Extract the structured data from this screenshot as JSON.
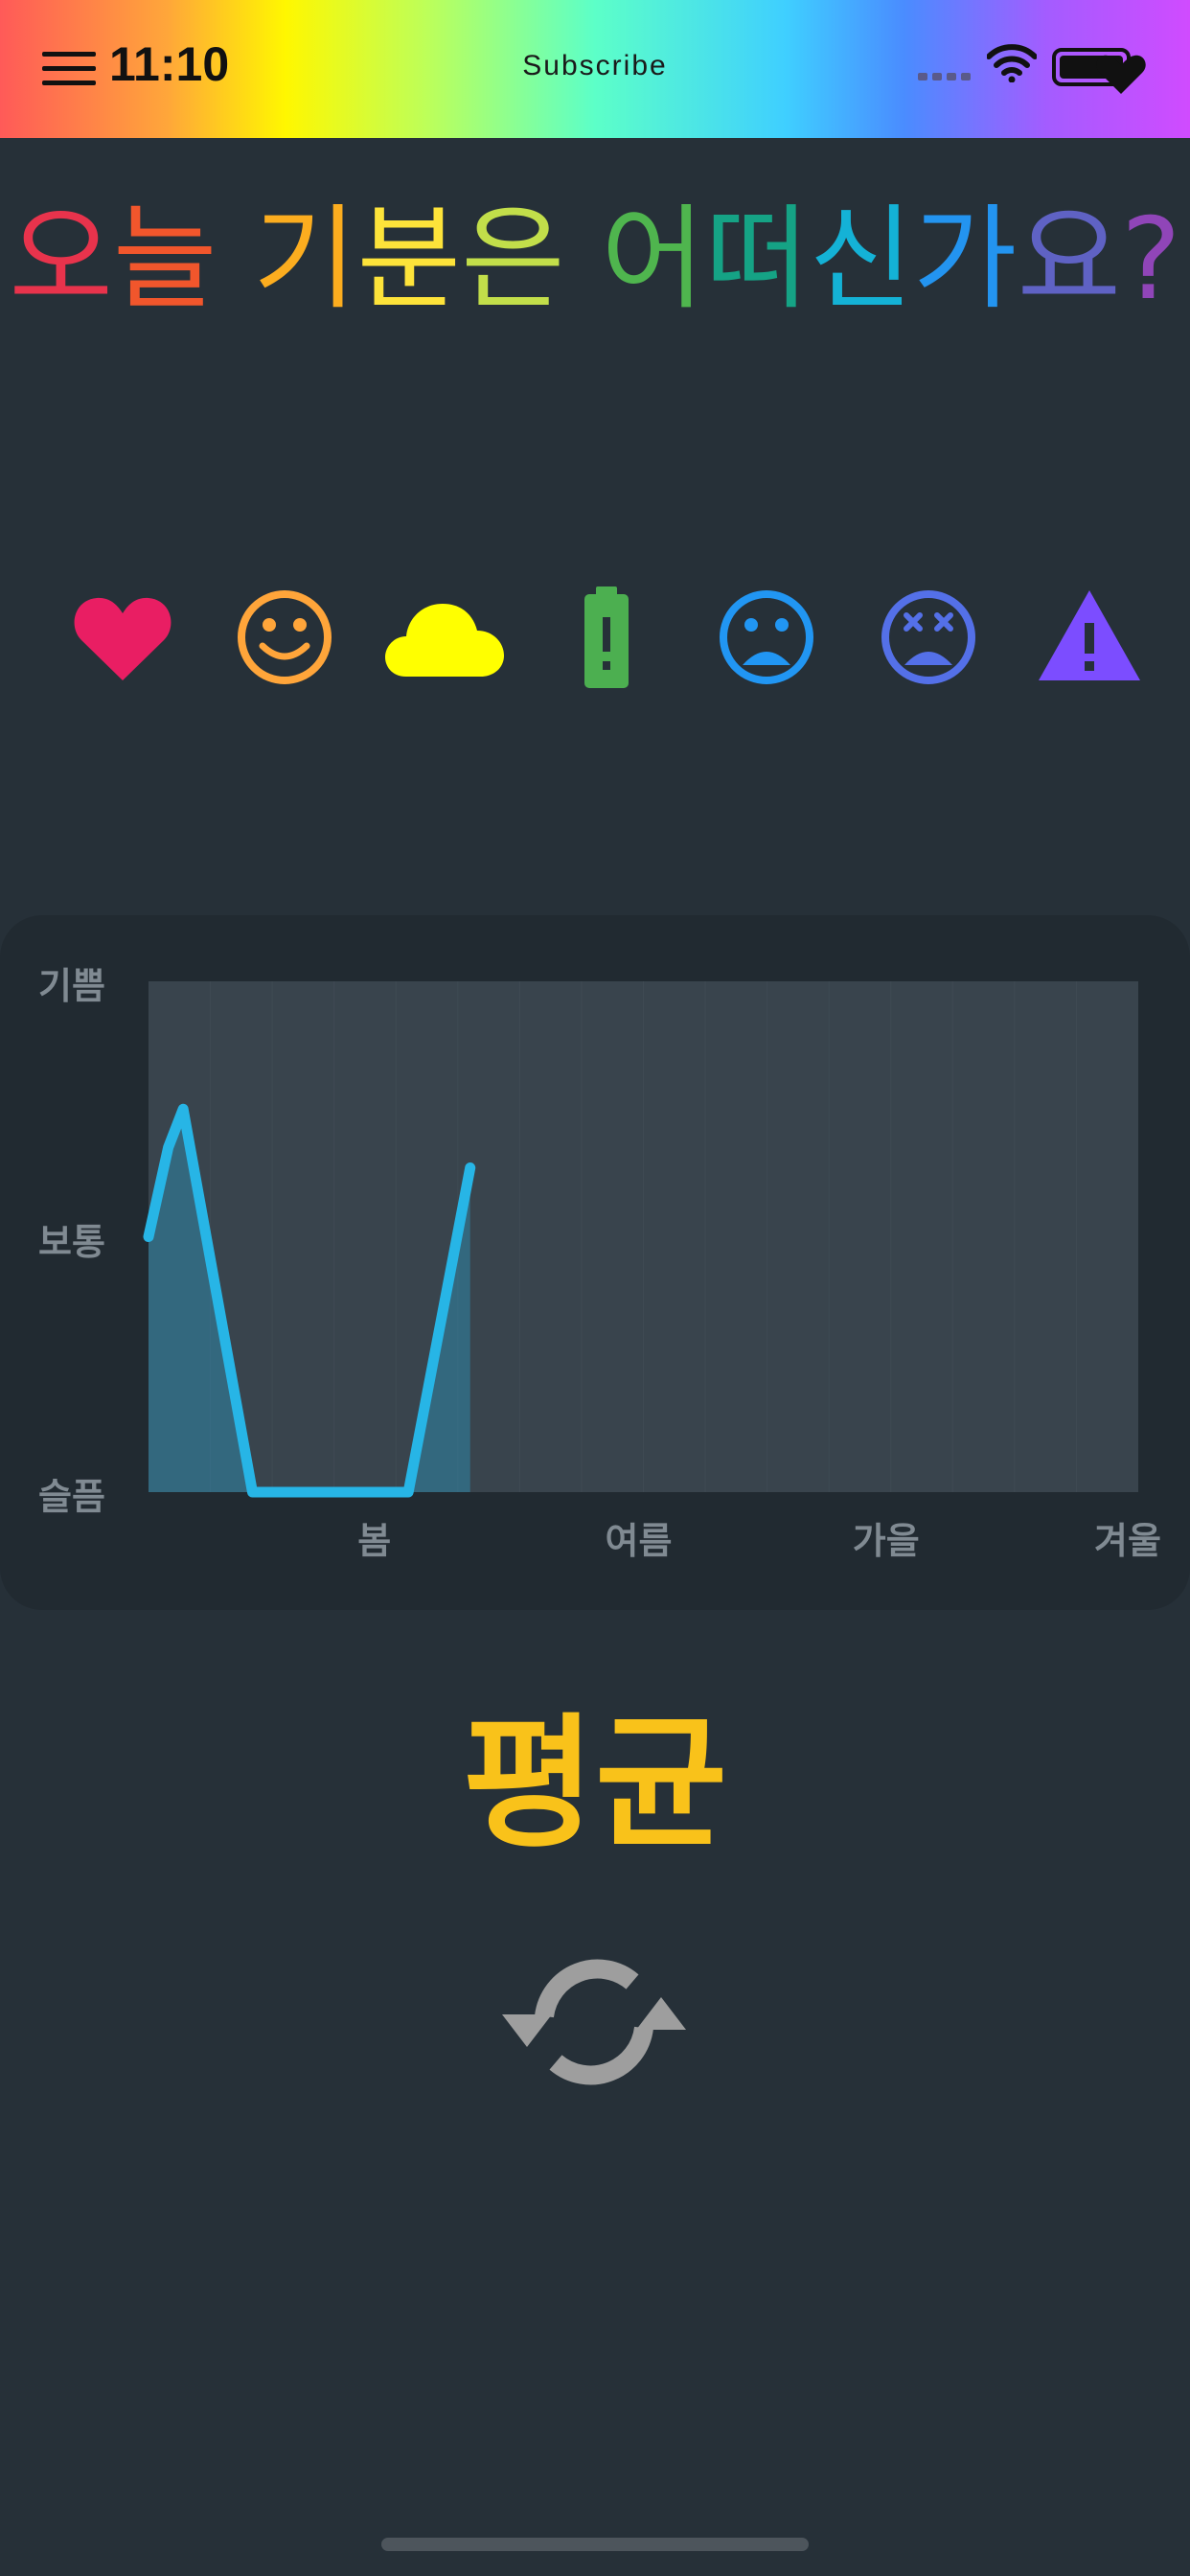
{
  "status_bar": {
    "time": "11:10",
    "center_label": "Subscribe",
    "gradient": [
      "#ff5a58",
      "#ffa63a",
      "#fff700",
      "#bcff5a",
      "#5cffc8",
      "#3fcfff",
      "#4a8cff",
      "#a45cff",
      "#d04bff"
    ],
    "icons": [
      "menu-icon",
      "cellular-signal-icon",
      "wifi-icon",
      "battery-icon"
    ]
  },
  "title": {
    "chars": [
      {
        "ch": "오",
        "color": "#e8334c"
      },
      {
        "ch": "늘",
        "color": "#f1562c"
      },
      {
        "ch": " ",
        "color": "#ffffff"
      },
      {
        "ch": "기",
        "color": "#fcad1f"
      },
      {
        "ch": "분",
        "color": "#fde33a"
      },
      {
        "ch": "은",
        "color": "#c2de4a"
      },
      {
        "ch": " ",
        "color": "#ffffff"
      },
      {
        "ch": "어",
        "color": "#4fb54e"
      },
      {
        "ch": "떠",
        "color": "#15a385"
      },
      {
        "ch": "신",
        "color": "#14b2d6"
      },
      {
        "ch": "가",
        "color": "#2394f0"
      },
      {
        "ch": "요",
        "color": "#5f62c4"
      },
      {
        "ch": "?",
        "color": "#9045b8"
      }
    ]
  },
  "moods": [
    {
      "name": "heart-icon",
      "color": "#e91e63"
    },
    {
      "name": "smile-icon",
      "color": "#ffa53a"
    },
    {
      "name": "cloud-icon",
      "color": "#ffff00"
    },
    {
      "name": "battery-alert-icon",
      "color": "#4caf50"
    },
    {
      "name": "sad-face-icon",
      "color": "#2196f3"
    },
    {
      "name": "dizzy-face-icon",
      "color": "#5470e8"
    },
    {
      "name": "warning-icon",
      "color": "#7c4dff"
    }
  ],
  "chart_data": {
    "type": "area",
    "y_levels": [
      "슬픔",
      "보통",
      "기쁨"
    ],
    "ylim": [
      0,
      2
    ],
    "x_ticks": [
      "봄",
      "여름",
      "가을",
      "겨울"
    ],
    "xlim": [
      0,
      4
    ],
    "series": [
      {
        "color": "#27b5e6",
        "x": [
          0,
          0.08,
          0.14,
          0.42,
          0.6,
          0.98,
          1.05,
          1.3
        ],
        "y": [
          1.0,
          1.35,
          1.5,
          0.0,
          0.0,
          0.0,
          0.0,
          1.27
        ]
      }
    ],
    "grid": true
  },
  "average": {
    "label": "평균",
    "color": "#f9c21a"
  },
  "refresh": {
    "icon": "refresh-icon",
    "color": "#9e9e9e"
  }
}
